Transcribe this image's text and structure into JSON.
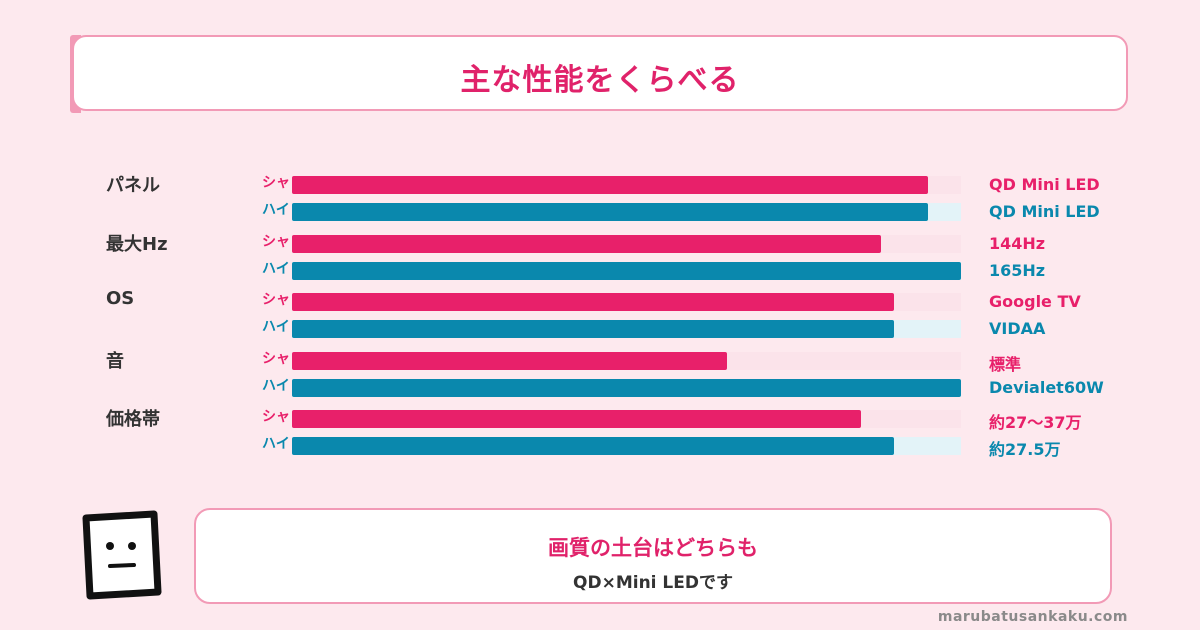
{
  "title": "主な性能をくらべる",
  "colors": {
    "sharp": "#e8206a",
    "sharp_track": "#fbe3ea",
    "hisense": "#0a88ad",
    "hisense_track": "#e3f3f8",
    "background": "#fde9ee",
    "border": "#f29ab6"
  },
  "chart_data": {
    "type": "bar",
    "orientation": "horizontal",
    "max": 1.0,
    "categories": [
      "パネル",
      "最大Hz",
      "OS",
      "音",
      "価格帯"
    ],
    "series": [
      {
        "name": "シャ",
        "values": [
          0.95,
          0.88,
          0.9,
          0.65,
          0.85
        ],
        "labels": [
          "QD Mini LED",
          "144Hz",
          "Google TV",
          "標準",
          "約27〜37万"
        ]
      },
      {
        "name": "ハイ",
        "values": [
          0.95,
          1.0,
          0.9,
          1.0,
          0.9
        ],
        "labels": [
          "QD Mini LED",
          "165Hz",
          "VIDAA",
          "Devialet60W",
          "約27.5万"
        ]
      }
    ]
  },
  "message": {
    "line1": "画質の土台はどちらも",
    "line2": "QD×Mini LEDです"
  },
  "footer": "marubatusankaku.com"
}
